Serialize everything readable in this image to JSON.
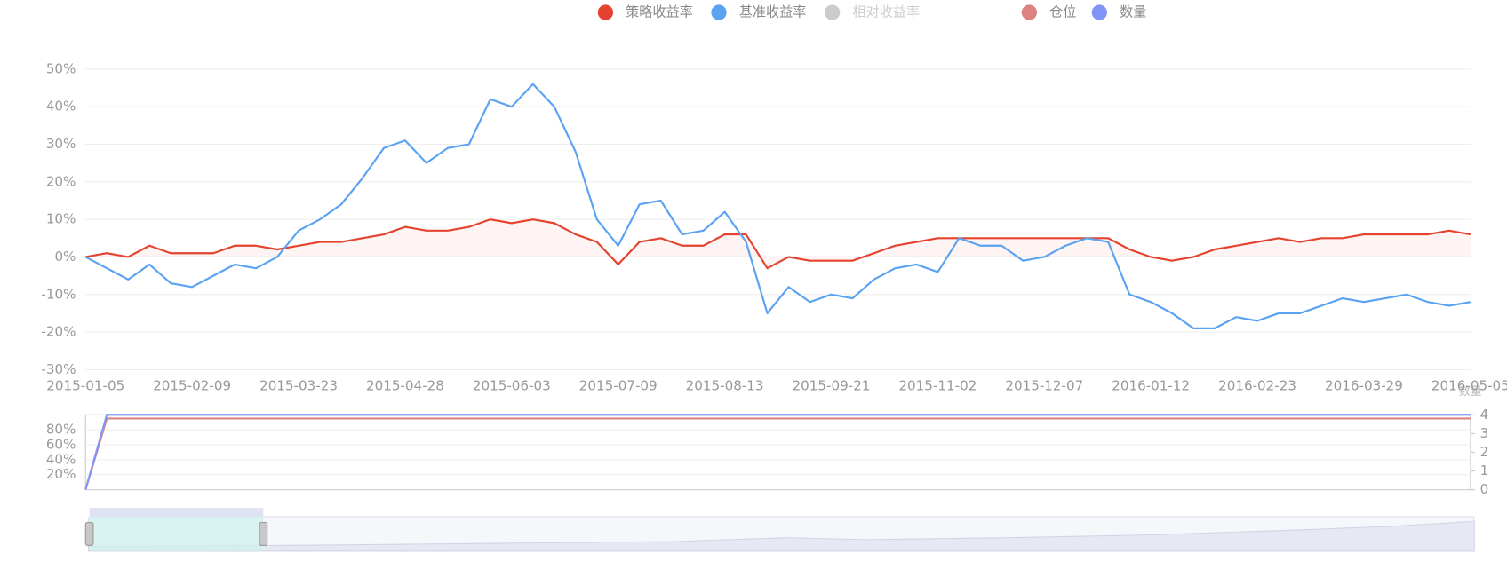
{
  "chart_data": [
    {
      "type": "line",
      "categories": [
        "2015-01-05",
        null,
        null,
        null,
        null,
        "2015-02-09",
        null,
        null,
        null,
        null,
        "2015-03-23",
        null,
        null,
        null,
        null,
        "2015-04-28",
        null,
        null,
        null,
        null,
        "2015-06-03",
        null,
        null,
        null,
        null,
        "2015-07-09",
        null,
        null,
        null,
        null,
        "2015-08-13",
        null,
        null,
        null,
        null,
        "2015-09-21",
        null,
        null,
        null,
        null,
        "2015-11-02",
        null,
        null,
        null,
        null,
        "2015-12-07",
        null,
        null,
        null,
        null,
        "2016-01-12",
        null,
        null,
        null,
        null,
        "2016-02-23",
        null,
        null,
        null,
        null,
        "2016-03-29",
        null,
        null,
        null,
        null,
        "2016-05-05"
      ],
      "series": [
        {
          "name": "策略收益率",
          "color": "#e5432f",
          "area": true,
          "values": [
            0,
            1,
            0,
            3,
            1,
            1,
            1,
            3,
            3,
            2,
            3,
            4,
            4,
            5,
            6,
            8,
            7,
            7,
            8,
            10,
            9,
            10,
            9,
            6,
            4,
            -2,
            4,
            5,
            3,
            3,
            6,
            6,
            -3,
            0,
            -1,
            -1,
            -1,
            1,
            3,
            4,
            5,
            5,
            5,
            5,
            5,
            5,
            5,
            5,
            5,
            2,
            0,
            -1,
            0,
            2,
            3,
            4,
            5,
            4,
            5,
            5,
            6,
            6,
            6,
            6,
            7,
            6
          ]
        },
        {
          "name": "基准收益率",
          "color": "#5aa2f2",
          "values": [
            0,
            -3,
            -6,
            -2,
            -7,
            -8,
            -5,
            -2,
            -3,
            0,
            7,
            10,
            14,
            21,
            29,
            31,
            25,
            29,
            30,
            42,
            40,
            46,
            40,
            28,
            10,
            3,
            14,
            15,
            6,
            7,
            12,
            4,
            -15,
            -8,
            -12,
            -10,
            -11,
            -6,
            -3,
            -2,
            -4,
            5,
            3,
            3,
            -1,
            0,
            3,
            5,
            4,
            -10,
            -12,
            -15,
            -19,
            -19,
            -16,
            -17,
            -15,
            -15,
            -13,
            -11,
            -12,
            -11,
            -10,
            -12,
            -13,
            -12
          ]
        },
        {
          "name": "相对收益率",
          "color": "#cccccc",
          "hidden": true
        }
      ],
      "ylim": [
        -30,
        50
      ],
      "yticks": [
        {
          "value": -30,
          "label": "-30%"
        },
        {
          "value": -20,
          "label": "-20%"
        },
        {
          "value": -10,
          "label": "-10%"
        },
        {
          "value": 0,
          "label": "0%"
        },
        {
          "value": 10,
          "label": "10%"
        },
        {
          "value": 20,
          "label": "20%"
        },
        {
          "value": 30,
          "label": "30%"
        },
        {
          "value": 40,
          "label": "40%"
        },
        {
          "value": 50,
          "label": "50%"
        }
      ],
      "grid": true
    },
    {
      "type": "line",
      "series": [
        {
          "name": "仓位",
          "color": "#dc8380",
          "values": [
            0,
            95,
            95,
            95,
            95,
            95,
            95,
            95,
            95,
            95,
            95,
            95,
            95,
            95,
            95,
            95,
            95,
            95,
            95,
            95,
            95,
            95,
            95,
            95,
            95,
            95,
            95,
            95,
            95,
            95,
            95,
            95,
            95,
            95,
            95,
            95,
            95,
            95,
            95,
            95,
            95,
            95,
            95,
            95,
            95,
            95,
            95,
            95,
            95,
            95,
            95,
            95,
            95,
            95,
            95,
            95,
            95,
            95,
            95,
            95,
            95,
            95,
            95,
            95,
            95,
            95
          ]
        },
        {
          "name": "数量",
          "color": "#8095f5",
          "axis": "y2",
          "values": [
            0,
            4,
            4,
            4,
            4,
            4,
            4,
            4,
            4,
            4,
            4,
            4,
            4,
            4,
            4,
            4,
            4,
            4,
            4,
            4,
            4,
            4,
            4,
            4,
            4,
            4,
            4,
            4,
            4,
            4,
            4,
            4,
            4,
            4,
            4,
            4,
            4,
            4,
            4,
            4,
            4,
            4,
            4,
            4,
            4,
            4,
            4,
            4,
            4,
            4,
            4,
            4,
            4,
            4,
            4,
            4,
            4,
            4,
            4,
            4,
            4,
            4,
            4,
            4,
            4,
            4
          ]
        }
      ],
      "ylim": [
        0,
        100
      ],
      "yticks": [
        {
          "value": 20,
          "label": "20%"
        },
        {
          "value": 40,
          "label": "40%"
        },
        {
          "value": 60,
          "label": "60%"
        },
        {
          "value": 80,
          "label": "80%"
        }
      ],
      "y2lim": [
        0,
        4
      ],
      "y2ticks": [
        0,
        1,
        2,
        3,
        4
      ],
      "y2_axis_label": "数量",
      "grid": true
    }
  ]
}
